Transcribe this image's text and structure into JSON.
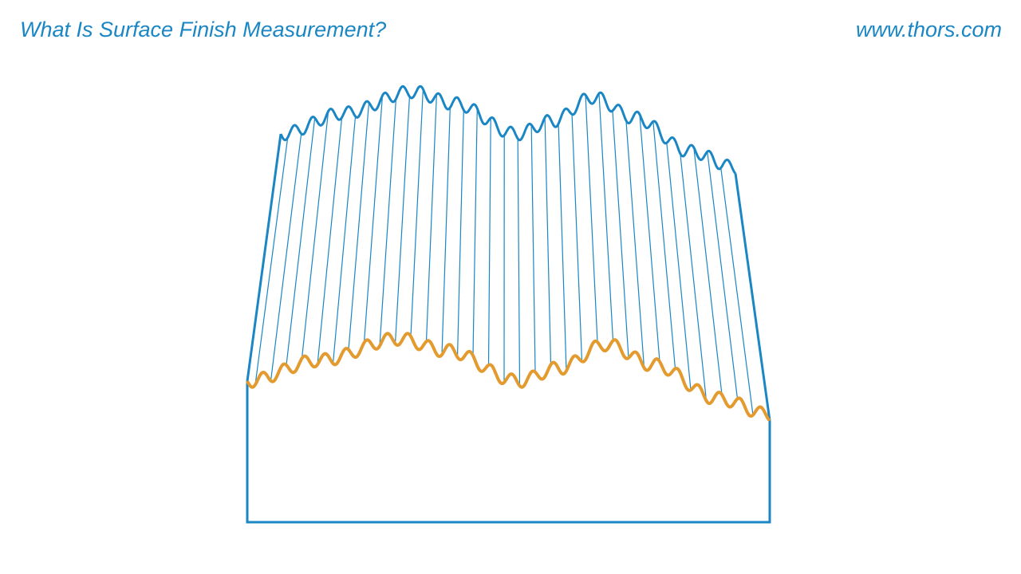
{
  "header": {
    "title": "What Is Surface Finish Measurement?",
    "website": "www.thors.com"
  }
}
